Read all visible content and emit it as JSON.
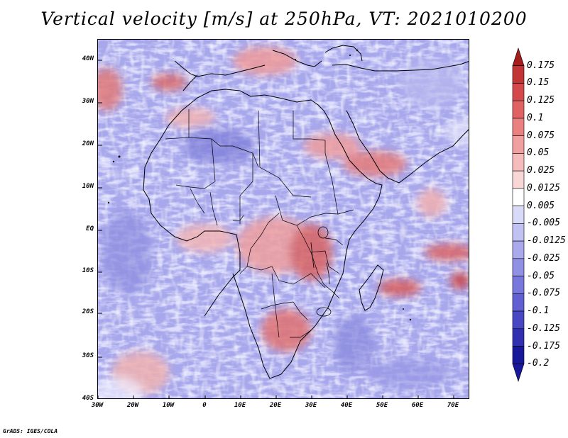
{
  "title": "Vertical velocity [m/s] at 250hPa, VT: 2021010200",
  "credit": "GrADS: IGES/COLA",
  "map": {
    "lat_ticks": [
      "40N",
      "30N",
      "20N",
      "10N",
      "EQ",
      "10S",
      "20S",
      "30S",
      "40S"
    ],
    "lon_ticks": [
      "30W",
      "20W",
      "10W",
      "0",
      "10E",
      "20E",
      "30E",
      "40E",
      "50E",
      "60E",
      "70E"
    ],
    "lat_range": [
      -40,
      45
    ],
    "lon_range": [
      -30,
      75
    ]
  },
  "colorbar": {
    "labels": [
      "0.175",
      "0.15",
      "0.125",
      "0.1",
      "0.075",
      "0.05",
      "0.025",
      "0.0125",
      "0.005",
      "-0.005",
      "-0.0125",
      "-0.025",
      "-0.05",
      "-0.075",
      "-0.1",
      "-0.125",
      "-0.175",
      "-0.2"
    ],
    "colors": [
      "#a51c1c",
      "#c13535",
      "#d44a4a",
      "#e06262",
      "#ea8080",
      "#f1a0a0",
      "#f6bcbc",
      "#fad7d7",
      "#ffffff",
      "#d9d9f8",
      "#c2c2f2",
      "#a9a9ec",
      "#9090e4",
      "#7878dc",
      "#6060d2",
      "#4848c4",
      "#3030b0",
      "#18189a"
    ]
  }
}
